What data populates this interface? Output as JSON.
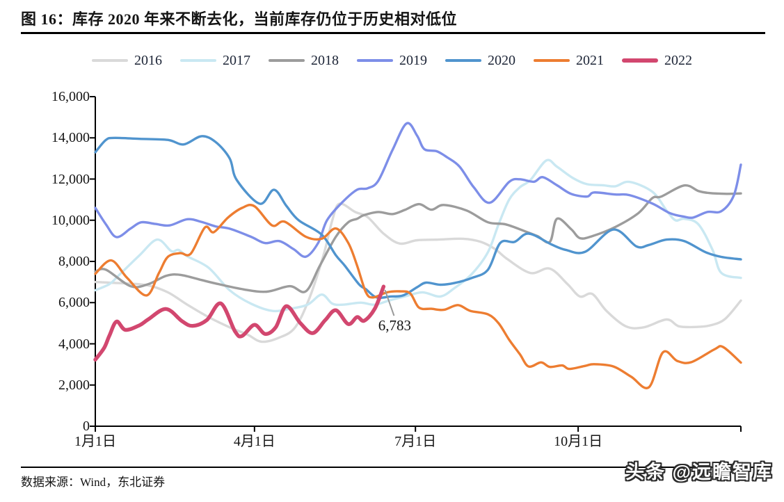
{
  "header": {
    "title": "图 16：库存 2020 年来不断去化，当前库存仍位于历史相对低位"
  },
  "footer": {
    "source": "数据来源：Wind，东北证券",
    "watermark": "头条 @远瞻智库"
  },
  "annotation": {
    "label": "6,783",
    "series": "2022",
    "value": 6783
  },
  "colors": {
    "axis": "#000000",
    "leader_line": "#999999",
    "s2016": "#D9D9D9",
    "s2017": "#C9E8F2",
    "s2018": "#9C9C9C",
    "s2019": "#7D8EE8",
    "s2020": "#5094CE",
    "s2021": "#ED7D31",
    "s2022": "#D2476F"
  },
  "chart_data": {
    "type": "line",
    "title": "库存 2020 年来不断去化，当前库存仍位于历史相对低位",
    "xlabel": "",
    "ylabel": "",
    "x_axis": {
      "tick_labels": [
        "1月1日",
        "4月1日",
        "7月1日",
        "10月1日"
      ],
      "tick_days": [
        0,
        90,
        181,
        273
      ],
      "end_tick_day": 365,
      "unit": "day-of-year"
    },
    "y_axis": {
      "min": 0,
      "max": 16000,
      "step": 2000
    },
    "grid": false,
    "legend_position": "top",
    "series": [
      {
        "name": "2016",
        "color": "#D9D9D9",
        "width": 3.4,
        "points": [
          [
            0,
            7000
          ],
          [
            13,
            6950
          ],
          [
            29,
            6850
          ],
          [
            41,
            6500
          ],
          [
            52,
            5900
          ],
          [
            64,
            5300
          ],
          [
            76,
            4800
          ],
          [
            86,
            4450
          ],
          [
            94,
            4100
          ],
          [
            104,
            4300
          ],
          [
            113,
            4800
          ],
          [
            121,
            6200
          ],
          [
            129,
            8300
          ],
          [
            134,
            10000
          ],
          [
            138,
            10800
          ],
          [
            147,
            10400
          ],
          [
            154,
            10150
          ],
          [
            163,
            9350
          ],
          [
            172,
            8870
          ],
          [
            182,
            9030
          ],
          [
            194,
            9060
          ],
          [
            208,
            9100
          ],
          [
            218,
            8950
          ],
          [
            226,
            8600
          ],
          [
            233,
            8110
          ],
          [
            246,
            7440
          ],
          [
            257,
            7650
          ],
          [
            267,
            6900
          ],
          [
            274,
            6300
          ],
          [
            281,
            6420
          ],
          [
            289,
            5600
          ],
          [
            300,
            4850
          ],
          [
            310,
            4800
          ],
          [
            323,
            5180
          ],
          [
            330,
            4850
          ],
          [
            340,
            4820
          ],
          [
            348,
            4900
          ],
          [
            356,
            5200
          ],
          [
            365,
            6100
          ]
        ]
      },
      {
        "name": "2017",
        "color": "#C9E8F2",
        "width": 3.4,
        "points": [
          [
            0,
            6600
          ],
          [
            8,
            6900
          ],
          [
            13,
            7300
          ],
          [
            25,
            8300
          ],
          [
            35,
            9060
          ],
          [
            43,
            8500
          ],
          [
            47,
            8560
          ],
          [
            52,
            8250
          ],
          [
            64,
            7700
          ],
          [
            76,
            6600
          ],
          [
            88,
            5950
          ],
          [
            100,
            5600
          ],
          [
            110,
            5700
          ],
          [
            120,
            5900
          ],
          [
            128,
            6390
          ],
          [
            134,
            5950
          ],
          [
            140,
            5900
          ],
          [
            150,
            6000
          ],
          [
            158,
            5900
          ],
          [
            166,
            6100
          ],
          [
            175,
            6300
          ],
          [
            185,
            6500
          ],
          [
            195,
            6300
          ],
          [
            203,
            6700
          ],
          [
            213,
            7400
          ],
          [
            222,
            8450
          ],
          [
            228,
            9800
          ],
          [
            234,
            11000
          ],
          [
            240,
            11600
          ],
          [
            246,
            11950
          ],
          [
            255,
            12900
          ],
          [
            261,
            12600
          ],
          [
            270,
            12050
          ],
          [
            278,
            11750
          ],
          [
            287,
            11700
          ],
          [
            294,
            11650
          ],
          [
            302,
            11860
          ],
          [
            315,
            11380
          ],
          [
            323,
            10470
          ],
          [
            328,
            10000
          ],
          [
            333,
            10070
          ],
          [
            341,
            9800
          ],
          [
            349,
            8560
          ],
          [
            354,
            7440
          ],
          [
            365,
            7200
          ]
        ]
      },
      {
        "name": "2018",
        "color": "#9C9C9C",
        "width": 3.4,
        "points": [
          [
            0,
            7500
          ],
          [
            6,
            7600
          ],
          [
            20,
            6800
          ],
          [
            30,
            6900
          ],
          [
            40,
            7300
          ],
          [
            48,
            7350
          ],
          [
            60,
            7100
          ],
          [
            68,
            6930
          ],
          [
            84,
            6640
          ],
          [
            97,
            6530
          ],
          [
            110,
            6800
          ],
          [
            119,
            6550
          ],
          [
            127,
            7800
          ],
          [
            136,
            9200
          ],
          [
            143,
            9900
          ],
          [
            148,
            10070
          ],
          [
            152,
            10250
          ],
          [
            160,
            10400
          ],
          [
            168,
            10300
          ],
          [
            175,
            10500
          ],
          [
            183,
            10780
          ],
          [
            190,
            10510
          ],
          [
            197,
            10740
          ],
          [
            210,
            10470
          ],
          [
            222,
            9900
          ],
          [
            232,
            9800
          ],
          [
            243,
            9460
          ],
          [
            250,
            9230
          ],
          [
            257,
            8950
          ],
          [
            261,
            10070
          ],
          [
            269,
            9570
          ],
          [
            274,
            9130
          ],
          [
            281,
            9230
          ],
          [
            294,
            9670
          ],
          [
            307,
            10340
          ],
          [
            315,
            11080
          ],
          [
            320,
            11150
          ],
          [
            333,
            11690
          ],
          [
            341,
            11420
          ],
          [
            347,
            11320
          ],
          [
            357,
            11280
          ],
          [
            365,
            11300
          ]
        ]
      },
      {
        "name": "2019",
        "color": "#7D8EE8",
        "width": 3.4,
        "points": [
          [
            0,
            10600
          ],
          [
            6,
            9800
          ],
          [
            12,
            9180
          ],
          [
            20,
            9600
          ],
          [
            26,
            9900
          ],
          [
            34,
            9820
          ],
          [
            42,
            9750
          ],
          [
            52,
            10050
          ],
          [
            60,
            9920
          ],
          [
            68,
            9700
          ],
          [
            76,
            9590
          ],
          [
            88,
            9200
          ],
          [
            96,
            8890
          ],
          [
            104,
            8990
          ],
          [
            112,
            8600
          ],
          [
            119,
            8230
          ],
          [
            126,
            8900
          ],
          [
            131,
            10000
          ],
          [
            140,
            10900
          ],
          [
            148,
            11480
          ],
          [
            154,
            11550
          ],
          [
            160,
            11920
          ],
          [
            168,
            13400
          ],
          [
            176,
            14700
          ],
          [
            182,
            14100
          ],
          [
            186,
            13450
          ],
          [
            193,
            13350
          ],
          [
            199,
            13050
          ],
          [
            206,
            12600
          ],
          [
            214,
            11600
          ],
          [
            223,
            10850
          ],
          [
            234,
            11860
          ],
          [
            240,
            11990
          ],
          [
            248,
            11870
          ],
          [
            253,
            12090
          ],
          [
            261,
            11700
          ],
          [
            269,
            11280
          ],
          [
            278,
            11150
          ],
          [
            282,
            11350
          ],
          [
            294,
            11250
          ],
          [
            302,
            11220
          ],
          [
            315,
            10810
          ],
          [
            325,
            10340
          ],
          [
            333,
            10170
          ],
          [
            338,
            10130
          ],
          [
            346,
            10400
          ],
          [
            354,
            10440
          ],
          [
            361,
            11200
          ],
          [
            365,
            12700
          ]
        ]
      },
      {
        "name": "2020",
        "color": "#5094CE",
        "width": 3.4,
        "points": [
          [
            0,
            13300
          ],
          [
            6,
            13900
          ],
          [
            11,
            14000
          ],
          [
            25,
            13950
          ],
          [
            41,
            13900
          ],
          [
            50,
            13680
          ],
          [
            60,
            14080
          ],
          [
            68,
            13800
          ],
          [
            76,
            13000
          ],
          [
            80,
            11950
          ],
          [
            93,
            10800
          ],
          [
            101,
            11480
          ],
          [
            108,
            10700
          ],
          [
            115,
            10000
          ],
          [
            128,
            9300
          ],
          [
            136,
            8300
          ],
          [
            141,
            7800
          ],
          [
            149,
            6900
          ],
          [
            153,
            6650
          ],
          [
            159,
            6250
          ],
          [
            167,
            6300
          ],
          [
            174,
            6350
          ],
          [
            182,
            6750
          ],
          [
            187,
            6970
          ],
          [
            195,
            6870
          ],
          [
            203,
            6950
          ],
          [
            213,
            7200
          ],
          [
            222,
            7600
          ],
          [
            229,
            8900
          ],
          [
            237,
            8950
          ],
          [
            245,
            9350
          ],
          [
            258,
            8820
          ],
          [
            266,
            8560
          ],
          [
            277,
            8470
          ],
          [
            293,
            9550
          ],
          [
            306,
            8730
          ],
          [
            313,
            8800
          ],
          [
            323,
            9060
          ],
          [
            333,
            8990
          ],
          [
            345,
            8450
          ],
          [
            354,
            8220
          ],
          [
            365,
            8100
          ]
        ]
      },
      {
        "name": "2021",
        "color": "#ED7D31",
        "width": 3.4,
        "points": [
          [
            0,
            7400
          ],
          [
            9,
            8050
          ],
          [
            18,
            7200
          ],
          [
            29,
            6350
          ],
          [
            36,
            7440
          ],
          [
            41,
            8220
          ],
          [
            48,
            8400
          ],
          [
            54,
            8380
          ],
          [
            62,
            9650
          ],
          [
            67,
            9420
          ],
          [
            75,
            10130
          ],
          [
            83,
            10600
          ],
          [
            90,
            10680
          ],
          [
            100,
            9750
          ],
          [
            107,
            9930
          ],
          [
            119,
            9200
          ],
          [
            128,
            9100
          ],
          [
            136,
            9600
          ],
          [
            143,
            8900
          ],
          [
            148,
            7800
          ],
          [
            153,
            6500
          ],
          [
            157,
            6250
          ],
          [
            165,
            6500
          ],
          [
            172,
            6550
          ],
          [
            178,
            6450
          ],
          [
            183,
            5760
          ],
          [
            190,
            5700
          ],
          [
            197,
            5650
          ],
          [
            205,
            5880
          ],
          [
            212,
            5600
          ],
          [
            222,
            5430
          ],
          [
            228,
            5000
          ],
          [
            234,
            4200
          ],
          [
            240,
            3500
          ],
          [
            245,
            2900
          ],
          [
            252,
            3100
          ],
          [
            257,
            2880
          ],
          [
            264,
            2950
          ],
          [
            268,
            2780
          ],
          [
            277,
            2930
          ],
          [
            282,
            3010
          ],
          [
            293,
            2900
          ],
          [
            303,
            2400
          ],
          [
            313,
            1890
          ],
          [
            321,
            3590
          ],
          [
            329,
            3170
          ],
          [
            337,
            3110
          ],
          [
            350,
            3730
          ],
          [
            355,
            3840
          ],
          [
            365,
            3090
          ]
        ]
      },
      {
        "name": "2022",
        "color": "#D2476F",
        "width": 5.4,
        "points": [
          [
            0,
            3230
          ],
          [
            5,
            3800
          ],
          [
            8,
            4400
          ],
          [
            12,
            5080
          ],
          [
            17,
            4680
          ],
          [
            25,
            4900
          ],
          [
            30,
            5190
          ],
          [
            40,
            5690
          ],
          [
            49,
            5100
          ],
          [
            55,
            4870
          ],
          [
            63,
            5150
          ],
          [
            71,
            5960
          ],
          [
            79,
            4600
          ],
          [
            83,
            4380
          ],
          [
            90,
            4920
          ],
          [
            96,
            4480
          ],
          [
            102,
            4800
          ],
          [
            108,
            5830
          ],
          [
            116,
            5000
          ],
          [
            123,
            4520
          ],
          [
            130,
            5150
          ],
          [
            136,
            5630
          ],
          [
            143,
            4960
          ],
          [
            148,
            5300
          ],
          [
            152,
            5120
          ],
          [
            158,
            5700
          ],
          [
            163,
            6783
          ]
        ]
      }
    ]
  }
}
